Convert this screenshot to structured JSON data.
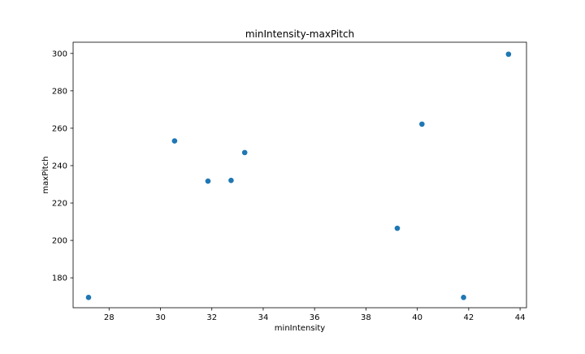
{
  "chart_data": {
    "type": "scatter",
    "title": "minIntensity-maxPitch",
    "xlabel": "minIntensity",
    "ylabel": "maxPitch",
    "xlim": [
      26.6,
      44.25
    ],
    "ylim": [
      164,
      306
    ],
    "xticks": [
      28,
      30,
      32,
      34,
      36,
      38,
      40,
      42,
      44
    ],
    "yticks": [
      180,
      200,
      220,
      240,
      260,
      280,
      300
    ],
    "grid": false,
    "marker_color": "#1f77b4",
    "points": [
      {
        "x": 27.2,
        "y": 169.5
      },
      {
        "x": 30.55,
        "y": 253.2
      },
      {
        "x": 31.85,
        "y": 231.7
      },
      {
        "x": 32.75,
        "y": 232.1
      },
      {
        "x": 33.28,
        "y": 247.0
      },
      {
        "x": 39.22,
        "y": 206.5
      },
      {
        "x": 40.18,
        "y": 262.2
      },
      {
        "x": 41.8,
        "y": 169.5
      },
      {
        "x": 43.55,
        "y": 299.6
      }
    ]
  }
}
